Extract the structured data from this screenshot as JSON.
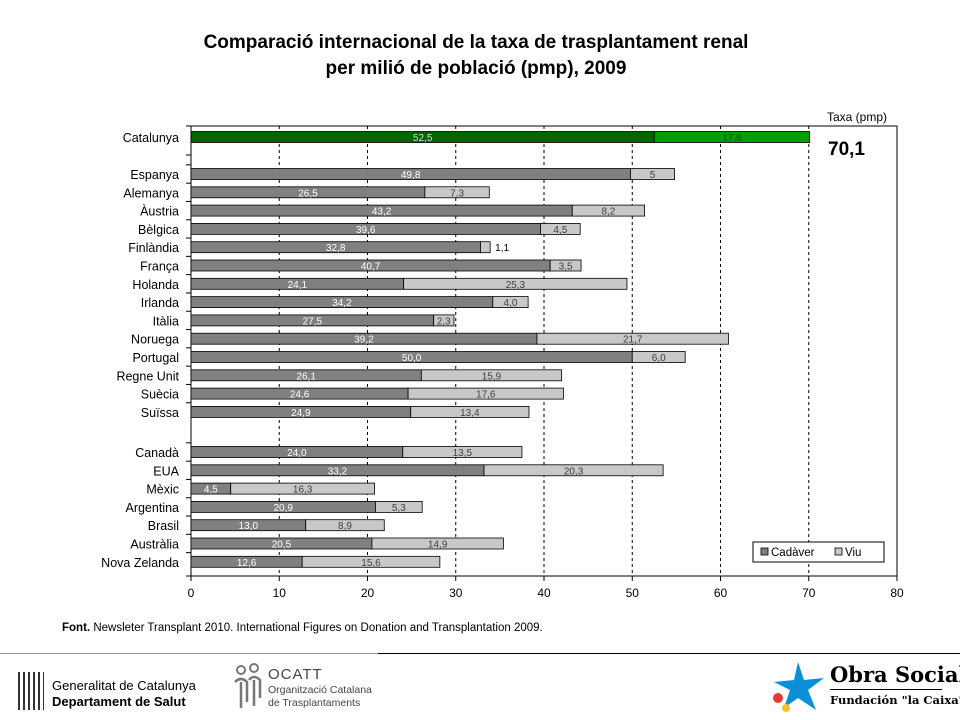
{
  "title": {
    "line1": "Comparació internacional de la taxa de trasplantament renal",
    "line2": "per milió de població (pmp), 2009"
  },
  "colors": {
    "cadaver": "#808080",
    "viu": "#c8c8c8",
    "catalunya_cadaver": "#006400",
    "catalunya_viu": "#00a000",
    "gridline": "#000000"
  },
  "chart_data": {
    "type": "bar",
    "orientation": "horizontal",
    "stacked": true,
    "categories": [
      "Catalunya",
      "Espanya",
      "Alemanya",
      "Àustria",
      "Bèlgica",
      "Finlàndia",
      "França",
      "Holanda",
      "Irlanda",
      "Itàlia",
      "Noruega",
      "Portugal",
      "Regne Unit",
      "Suècia",
      "Suïssa",
      "Canadà",
      "EUA",
      "Mèxic",
      "Argentina",
      "Brasil",
      "Austràlia",
      "Nova Zelanda"
    ],
    "series": [
      {
        "name": "Cadàver",
        "values": [
          52.5,
          49.8,
          26.5,
          43.2,
          39.6,
          32.8,
          40.7,
          24.1,
          34.2,
          27.5,
          39.2,
          50.0,
          26.1,
          24.6,
          24.9,
          24.0,
          33.2,
          4.5,
          20.9,
          13.0,
          20.5,
          12.6
        ],
        "labels": [
          "52,5",
          "49,8",
          "26,5",
          "43,2",
          "39,6",
          "32,8",
          "40,7",
          "24,1",
          "34,2",
          "27,5",
          "39,2",
          "50,0",
          "26,1",
          "24,6",
          "24,9",
          "24,0",
          "33,2",
          "4,5",
          "20,9",
          "13,0",
          "20,5",
          "12,6"
        ]
      },
      {
        "name": "Viu",
        "values": [
          17.6,
          5,
          7.3,
          8.2,
          4.5,
          1.1,
          3.5,
          25.3,
          4.0,
          2.3,
          21.7,
          6.0,
          15.9,
          17.6,
          13.4,
          13.5,
          20.3,
          16.3,
          5.3,
          8.9,
          14.9,
          15.6
        ],
        "labels": [
          "17,6",
          "5",
          "7,3",
          "8,2",
          "4,5",
          "1,1",
          "3,5",
          "25,3",
          "4,0",
          "2,3",
          "21,7",
          "6,0",
          "15,9",
          "17,6",
          "13,4",
          "13,5",
          "20,3",
          "16,3",
          "5,3",
          "8,9",
          "14,9",
          "15,6"
        ]
      }
    ],
    "xlim": [
      0,
      80
    ],
    "x_ticks": [
      "0",
      "10",
      "20",
      "30",
      "40",
      "50",
      "60",
      "70",
      "80"
    ],
    "xlabel": "",
    "ylabel": "",
    "axis_note": "Taxa (pmp)",
    "highlight_total": "70,1",
    "dashed_gridlines": [
      10,
      20,
      30,
      40,
      50,
      60,
      70
    ],
    "legend": {
      "placement": "bottom-right",
      "entries": [
        "Cadàver",
        "Viu"
      ]
    }
  },
  "source": {
    "label": "Font.",
    "text": "Newsleter Transplant 2010. International Figures on Donation and Transplantation 2009."
  },
  "logos": {
    "gencat_line1": "Generalitat de Catalunya",
    "gencat_line2": "Departament de Salut",
    "ocatt_name": "OCATT",
    "ocatt_line1": "Organització Catalana",
    "ocatt_line2": "de Trasplantaments",
    "obra_line1": "Obra Social",
    "obra_line2": "Fundación \"la Caixa\""
  }
}
